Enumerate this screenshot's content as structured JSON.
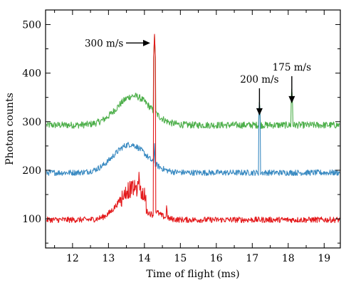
{
  "chart_data": {
    "type": "line",
    "xlabel": "Time of flight (ms)",
    "ylabel": "Photon counts",
    "xlim": [
      11.25,
      19.45
    ],
    "ylim": [
      40,
      530
    ],
    "xticks": [
      12,
      13,
      14,
      15,
      16,
      17,
      18,
      19
    ],
    "yticks": [
      100,
      200,
      300,
      400,
      500
    ],
    "grid": false,
    "series": [
      {
        "color": "#4daf4a",
        "baseline": 293,
        "noise": 7,
        "hump": {
          "center": 13.7,
          "width": 0.65,
          "height": 60
        },
        "spikes": [
          {
            "x": 14.28,
            "peak": 478
          },
          {
            "x": 17.2,
            "peak": 348
          },
          {
            "x": 18.1,
            "peak": 375
          }
        ],
        "points": [
          [
            11.3,
            295
          ],
          [
            11.6,
            293
          ],
          [
            11.9,
            296
          ],
          [
            12.2,
            300
          ],
          [
            12.5,
            310
          ],
          [
            12.8,
            322
          ],
          [
            13.1,
            336
          ],
          [
            13.4,
            348
          ],
          [
            13.6,
            355
          ],
          [
            13.8,
            352
          ],
          [
            14.0,
            340
          ],
          [
            14.2,
            325
          ],
          [
            14.28,
            478
          ],
          [
            14.4,
            318
          ],
          [
            14.7,
            308
          ],
          [
            15.0,
            303
          ],
          [
            15.5,
            298
          ],
          [
            16.0,
            295
          ],
          [
            16.5,
            294
          ],
          [
            17.0,
            293
          ],
          [
            17.2,
            348
          ],
          [
            17.5,
            293
          ],
          [
            18.0,
            292
          ],
          [
            18.1,
            375
          ],
          [
            18.5,
            292
          ],
          [
            19.0,
            293
          ],
          [
            19.4,
            294
          ]
        ]
      },
      {
        "color": "#3b8bc2",
        "baseline": 195,
        "noise": 6,
        "hump": {
          "center": 13.6,
          "width": 0.65,
          "height": 58
        },
        "spikes": [
          {
            "x": 14.28,
            "peak": 255
          },
          {
            "x": 17.2,
            "peak": 345
          }
        ],
        "points": [
          [
            11.3,
            196
          ],
          [
            11.6,
            195
          ],
          [
            11.9,
            200
          ],
          [
            12.2,
            207
          ],
          [
            12.5,
            218
          ],
          [
            12.8,
            232
          ],
          [
            13.1,
            244
          ],
          [
            13.4,
            252
          ],
          [
            13.6,
            255
          ],
          [
            13.8,
            250
          ],
          [
            14.0,
            240
          ],
          [
            14.2,
            230
          ],
          [
            14.28,
            255
          ],
          [
            14.4,
            226
          ],
          [
            14.7,
            214
          ],
          [
            15.0,
            206
          ],
          [
            15.5,
            200
          ],
          [
            16.0,
            197
          ],
          [
            16.5,
            196
          ],
          [
            17.0,
            195
          ],
          [
            17.2,
            345
          ],
          [
            17.5,
            195
          ],
          [
            18.0,
            195
          ],
          [
            18.5,
            195
          ],
          [
            19.0,
            195
          ],
          [
            19.4,
            196
          ]
        ]
      },
      {
        "color": "#e41a1c",
        "baseline": 98,
        "noise": 6,
        "hump": {
          "center": 13.7,
          "width": 0.55,
          "height": 65
        },
        "spikes": [
          {
            "x": 13.85,
            "peak": 200
          },
          {
            "x": 14.28,
            "peak": 480
          },
          {
            "x": 14.62,
            "peak": 135
          }
        ],
        "points": [
          [
            11.3,
            98
          ],
          [
            11.6,
            98
          ],
          [
            11.9,
            102
          ],
          [
            12.2,
            110
          ],
          [
            12.5,
            122
          ],
          [
            12.8,
            138
          ],
          [
            13.1,
            150
          ],
          [
            13.4,
            160
          ],
          [
            13.6,
            165
          ],
          [
            13.85,
            200
          ],
          [
            14.0,
            150
          ],
          [
            14.1,
            115
          ],
          [
            14.2,
            102
          ],
          [
            14.28,
            480
          ],
          [
            14.35,
            100
          ],
          [
            14.5,
            108
          ],
          [
            14.62,
            135
          ],
          [
            14.8,
            120
          ],
          [
            15.0,
            108
          ],
          [
            15.5,
            100
          ],
          [
            16.0,
            98
          ],
          [
            16.5,
            97
          ],
          [
            17.0,
            97
          ],
          [
            17.5,
            98
          ],
          [
            18.0,
            97
          ],
          [
            18.5,
            98
          ],
          [
            19.0,
            98
          ],
          [
            19.4,
            97
          ]
        ]
      }
    ],
    "annotations": [
      {
        "text": "300 m/s",
        "x": 14.28,
        "y": 462,
        "arrow": "right"
      },
      {
        "text": "200 m/s",
        "x": 17.2,
        "y": 313,
        "arrow": "down"
      },
      {
        "text": "175 m/s",
        "x": 18.1,
        "y": 338,
        "arrow": "down"
      }
    ]
  }
}
